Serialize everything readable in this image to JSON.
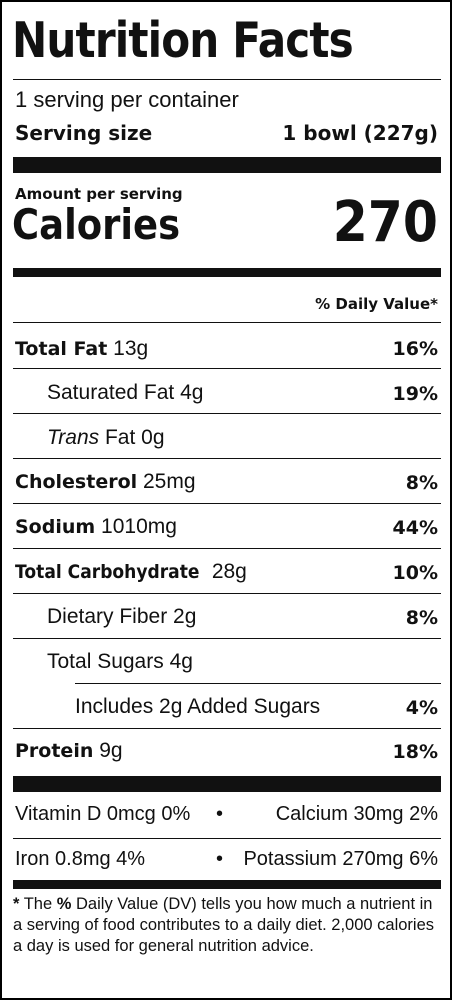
{
  "header": {
    "title": "Nutrition Facts",
    "servings_per_container": "1 serving per container",
    "serving_size_label": "Serving size",
    "serving_size_value": "1 bowl (227g)"
  },
  "calories": {
    "amount_per_serving": "Amount per serving",
    "label": "Calories",
    "value": "270"
  },
  "daily_value_header": "% Daily Value*",
  "nutrients": [
    {
      "name": "Total Fat",
      "amount": "13g",
      "dv": "16%"
    },
    {
      "name": "Saturated Fat",
      "amount": "4g",
      "dv": "19%"
    },
    {
      "name_italic": "Trans",
      "name": "Fat",
      "amount": "0g",
      "dv": ""
    },
    {
      "name": "Cholesterol",
      "amount": "25mg",
      "dv": "8%"
    },
    {
      "name": "Sodium",
      "amount": "1010mg",
      "dv": "44%"
    },
    {
      "name": "Total Carbohydrate",
      "amount": "28g",
      "dv": "10%"
    },
    {
      "name": "Dietary Fiber",
      "amount": "2g",
      "dv": "8%"
    },
    {
      "name": "Total Sugars",
      "amount": "4g",
      "dv": ""
    },
    {
      "name": "Includes 2g Added Sugars",
      "amount": "",
      "dv": "4%"
    },
    {
      "name": "Protein",
      "amount": "9g",
      "dv": "18%"
    }
  ],
  "vitamins": {
    "row1_left": "Vitamin D 0mcg 0%",
    "row1_right": "Calcium 30mg 2%",
    "row2_left": "Iron 0.8mg 4%",
    "row2_right": "Potassium 270mg 6%",
    "bullet": "•"
  },
  "footnote": {
    "star": "*",
    "pre": "The",
    "bold": "%",
    "text": "Daily Value (DV) tells you how much a nutrient in a serving of food contributes to a daily diet. 2,000 calories a day is used for general nutrition advice."
  }
}
